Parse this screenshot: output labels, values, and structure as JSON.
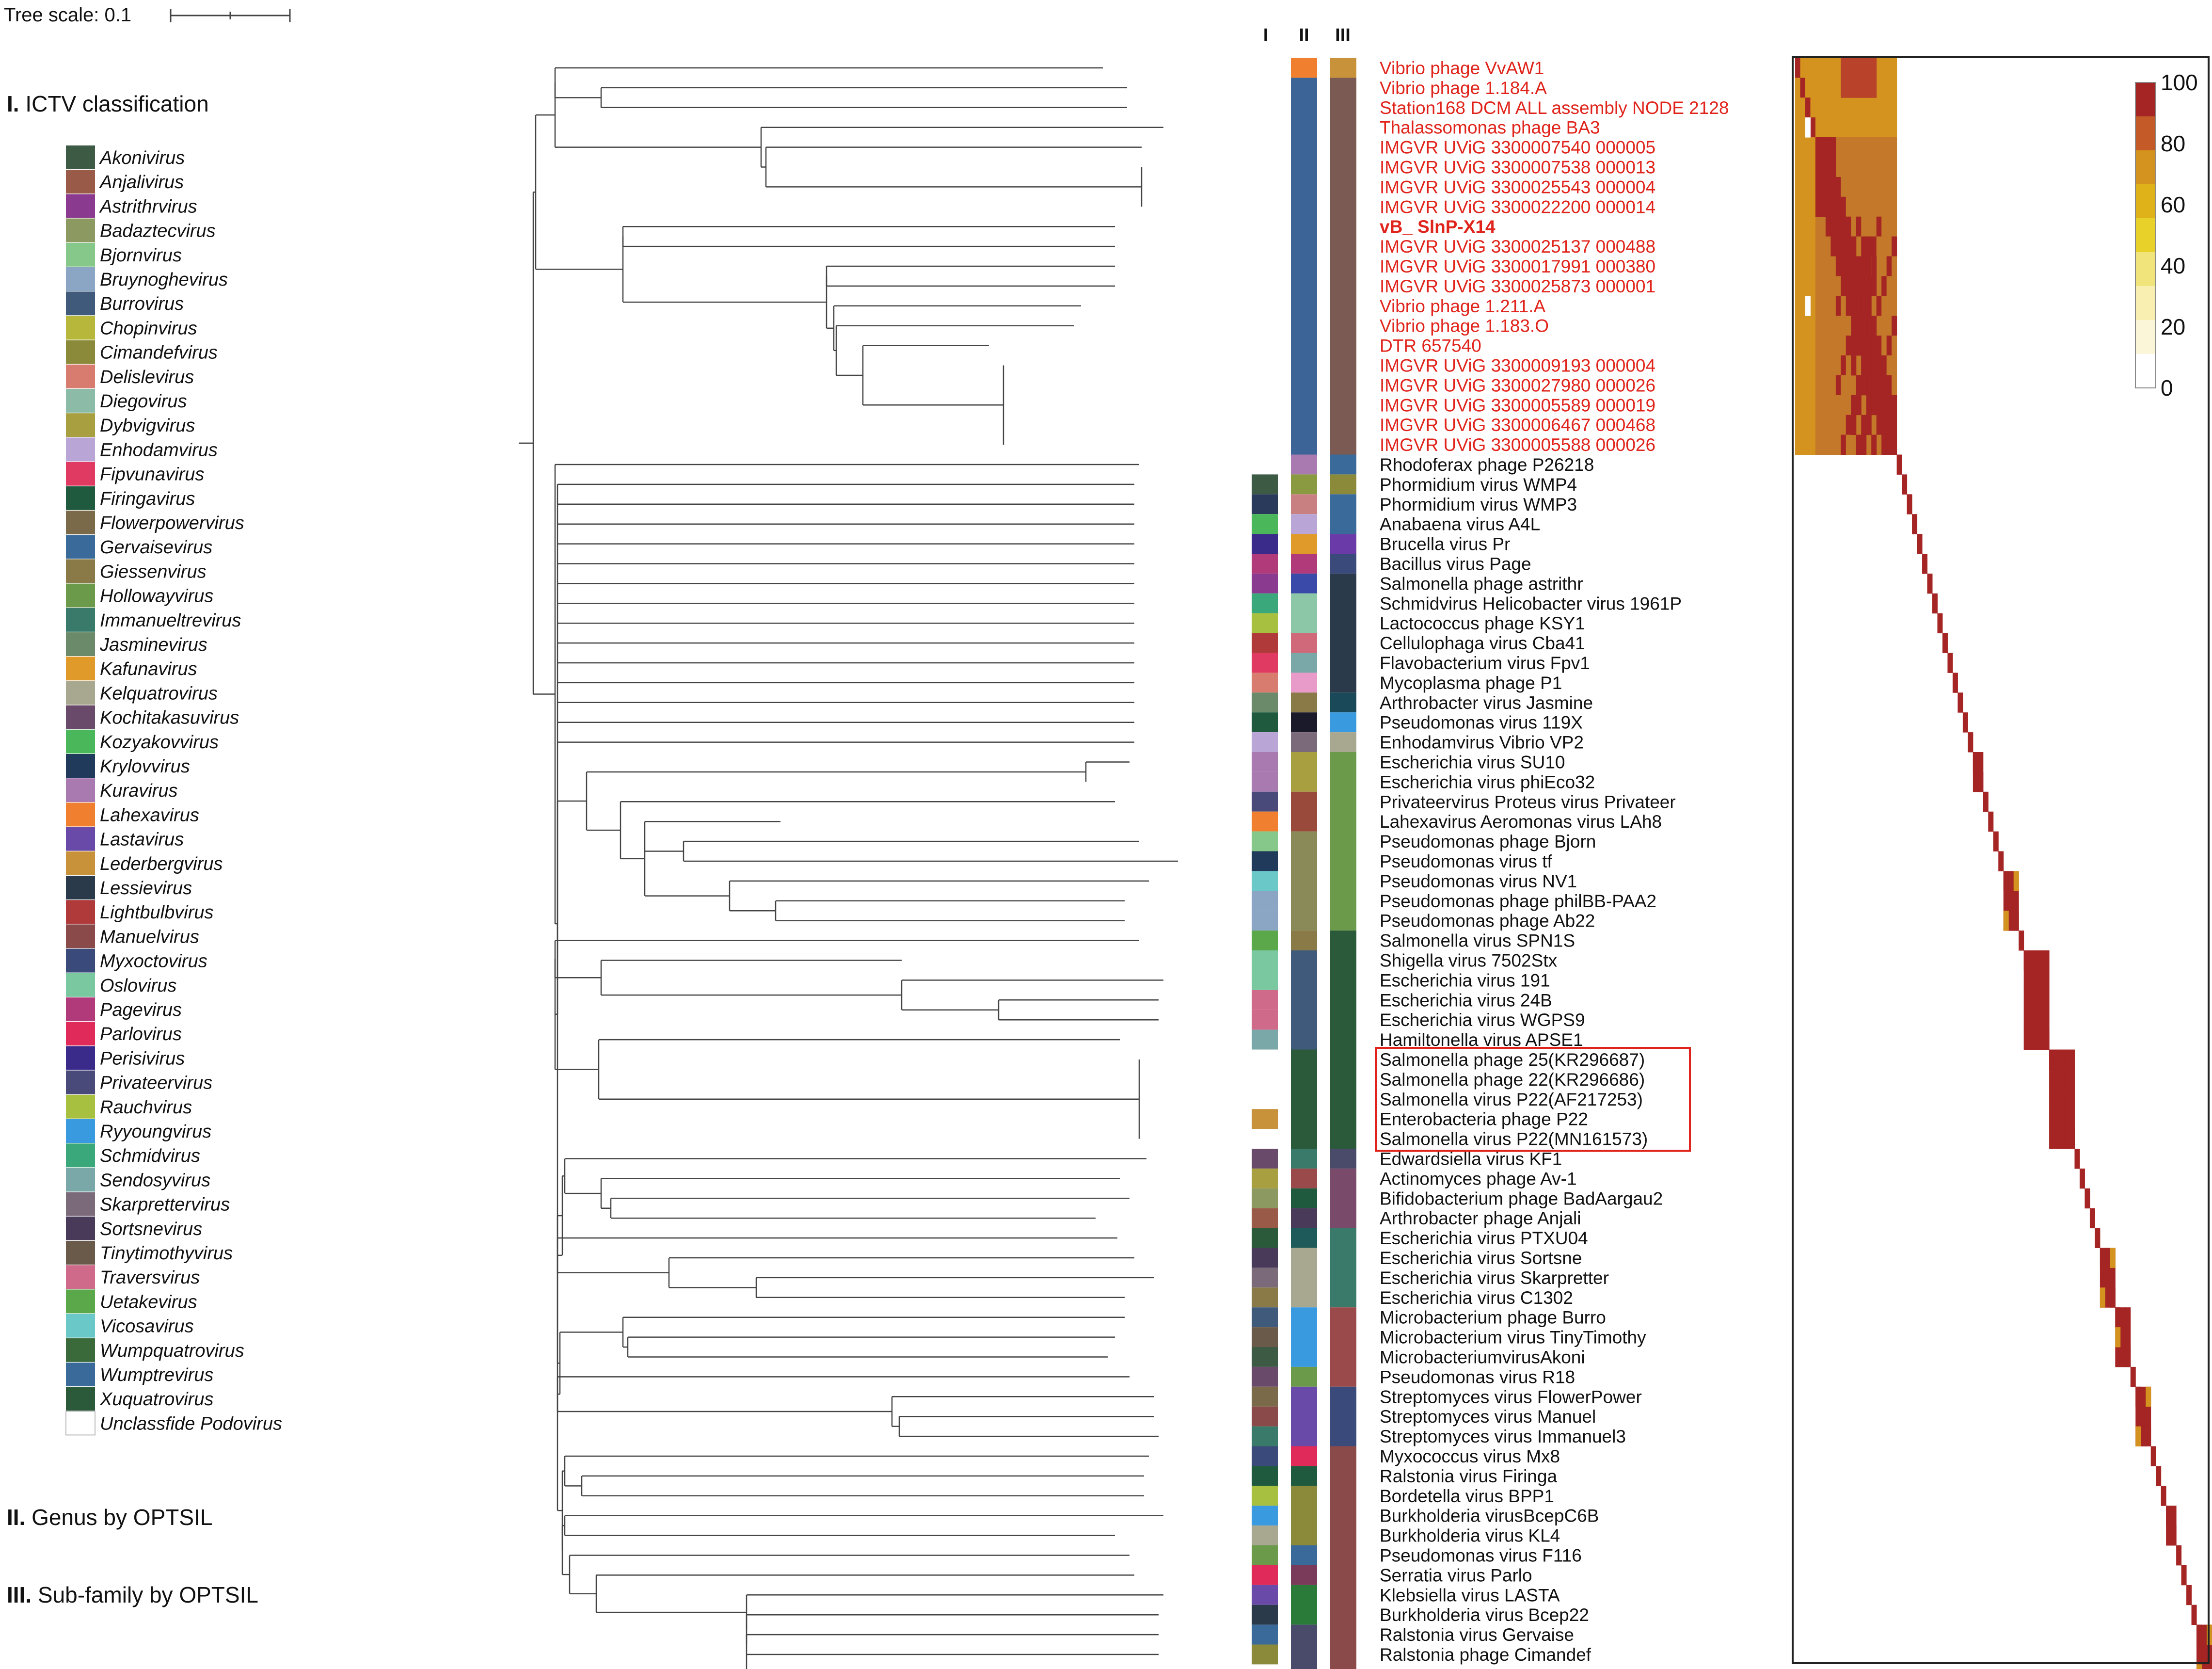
{
  "scale_bar": {
    "label": "Tree scale: 0.1"
  },
  "sections": {
    "ictv": {
      "numeral": "I.",
      "text": " ICTV classification"
    },
    "genus": {
      "numeral": "II.",
      "text": " Genus by OPTSIL"
    },
    "subfamily": {
      "numeral": "III.",
      "text": " Sub-family by OPTSIL"
    }
  },
  "column_headers": [
    "I",
    "II",
    "III"
  ],
  "legend": [
    {
      "name": "Akonivirus",
      "color": "#3d5a45"
    },
    {
      "name": "Anjalivirus",
      "color": "#9a5a48"
    },
    {
      "name": "Astrithrvirus",
      "color": "#8a3a8f"
    },
    {
      "name": "Badaztecvirus",
      "color": "#8c9a62"
    },
    {
      "name": "Bjornvirus",
      "color": "#86c88a"
    },
    {
      "name": "Bruynoghevirus",
      "color": "#8aa6c4"
    },
    {
      "name": "Burrovirus",
      "color": "#3f5a7a"
    },
    {
      "name": "Chopinvirus",
      "color": "#b7b83b"
    },
    {
      "name": "Cimandefvirus",
      "color": "#8b8a3a"
    },
    {
      "name": "Delislevirus",
      "color": "#d97c70"
    },
    {
      "name": "Diegovirus",
      "color": "#8cbca8"
    },
    {
      "name": "Dybvigvirus",
      "color": "#a8a040"
    },
    {
      "name": "Enhodamvirus",
      "color": "#b9a6d6"
    },
    {
      "name": "Fipvunavirus",
      "color": "#e03a62"
    },
    {
      "name": "Firingavirus",
      "color": "#1f5a3f"
    },
    {
      "name": "Flowerpowervirus",
      "color": "#7a6a4a"
    },
    {
      "name": "Gervaisevirus",
      "color": "#3a6a9a"
    },
    {
      "name": "Giessenvirus",
      "color": "#8a7a48"
    },
    {
      "name": "Hollowayvirus",
      "color": "#6a9a4a"
    },
    {
      "name": "Immanueltrevirus",
      "color": "#3a7a6a"
    },
    {
      "name": "Jasminevirus",
      "color": "#6a8a6a"
    },
    {
      "name": "Kafunavirus",
      "color": "#e09a2a"
    },
    {
      "name": "Kelquatrovirus",
      "color": "#a8a890"
    },
    {
      "name": "Kochitakasuvirus",
      "color": "#6a4a6a"
    },
    {
      "name": "Kozyakovvirus",
      "color": "#4ab85a"
    },
    {
      "name": "Krylovvirus",
      "color": "#1f3a5a"
    },
    {
      "name": "Kuravirus",
      "color": "#a87ab0"
    },
    {
      "name": "Lahexavirus",
      "color": "#f08030"
    },
    {
      "name": "Lastavirus",
      "color": "#6a4aa8"
    },
    {
      "name": "Lederbergvirus",
      "color": "#c8923a"
    },
    {
      "name": "Lessievirus",
      "color": "#2a3a4a"
    },
    {
      "name": "Lightbulbvirus",
      "color": "#b03a3a"
    },
    {
      "name": "Manuelvirus",
      "color": "#8a4a4a"
    },
    {
      "name": "Myxoctovirus",
      "color": "#3a4a7a"
    },
    {
      "name": "Oslovirus",
      "color": "#7ac8a0"
    },
    {
      "name": "Pagevirus",
      "color": "#b03a7a"
    },
    {
      "name": "Parlovirus",
      "color": "#e02a5a"
    },
    {
      "name": "Perisivirus",
      "color": "#3a2a8a"
    },
    {
      "name": "Privateervirus",
      "color": "#4a4a7a"
    },
    {
      "name": "Rauchvirus",
      "color": "#a8c040"
    },
    {
      "name": "Ryyoungvirus",
      "color": "#3a9ae0"
    },
    {
      "name": "Schmidvirus",
      "color": "#3aa87a"
    },
    {
      "name": "Sendosyvirus",
      "color": "#7aa8a8"
    },
    {
      "name": "Skarprettervirus",
      "color": "#7a6a7a"
    },
    {
      "name": "Sortsnevirus",
      "color": "#4a3a5a"
    },
    {
      "name": "Tinytimothyvirus",
      "color": "#6a5a4a"
    },
    {
      "name": "Traversvirus",
      "color": "#d06a8a"
    },
    {
      "name": "Uetakevirus",
      "color": "#5aa84a"
    },
    {
      "name": "Vicosavirus",
      "color": "#6ac8c8"
    },
    {
      "name": "Wumpquatrovirus",
      "color": "#3a6a3a"
    },
    {
      "name": "Wumptrevirus",
      "color": "#3a6a9a"
    },
    {
      "name": "Xuquatrovirus",
      "color": "#2a5a3a"
    },
    {
      "name": "Unclassfide Podovirus",
      "color": "#ffffff"
    }
  ],
  "leaves": [
    {
      "label": "Vibrio phage VvAW1",
      "color": "red"
    },
    {
      "label": "Vibrio phage 1.184.A",
      "color": "red"
    },
    {
      "label": "Station168 DCM ALL assembly NODE 2128",
      "color": "red"
    },
    {
      "label": "Thalassomonas phage BA3",
      "color": "red"
    },
    {
      "label": "IMGVR UViG 3300007540 000005",
      "color": "red"
    },
    {
      "label": "IMGVR UViG 3300007538 000013",
      "color": "red"
    },
    {
      "label": "IMGVR UViG 3300025543 000004",
      "color": "red"
    },
    {
      "label": "IMGVR UViG 3300022200 000014",
      "color": "red"
    },
    {
      "label": "vB_ SlnP-X14",
      "color": "red",
      "bold": true
    },
    {
      "label": "IMGVR UViG 3300025137 000488",
      "color": "red"
    },
    {
      "label": "IMGVR UViG 3300017991 000380",
      "color": "red"
    },
    {
      "label": "IMGVR UViG 3300025873 000001",
      "color": "red"
    },
    {
      "label": "Vibrio phage 1.211.A",
      "color": "red"
    },
    {
      "label": "Vibrio phage 1.183.O",
      "color": "red"
    },
    {
      "label": "DTR 657540",
      "color": "red"
    },
    {
      "label": "IMGVR UViG 3300009193 000004",
      "color": "red"
    },
    {
      "label": "IMGVR UViG 3300027980 000026",
      "color": "red"
    },
    {
      "label": "IMGVR UViG 3300005589 000019",
      "color": "red"
    },
    {
      "label": "IMGVR UViG 3300006467 000468",
      "color": "red"
    },
    {
      "label": "IMGVR UViG 3300005588 000026",
      "color": "red"
    },
    {
      "label": "Rhodoferax phage P26218",
      "color": "black"
    },
    {
      "label": "Phormidium virus WMP4",
      "color": "black"
    },
    {
      "label": "Phormidium virus WMP3",
      "color": "black"
    },
    {
      "label": "Anabaena virus A4L",
      "color": "black"
    },
    {
      "label": "Brucella virus Pr",
      "color": "black"
    },
    {
      "label": "Bacillus virus Page",
      "color": "black"
    },
    {
      "label": "Salmonella phage astrithr",
      "color": "black"
    },
    {
      "label": "Schmidvirus Helicobacter virus 1961P",
      "color": "black"
    },
    {
      "label": "Lactococcus phage KSY1",
      "color": "black"
    },
    {
      "label": "Cellulophaga virus Cba41",
      "color": "black"
    },
    {
      "label": "Flavobacterium virus Fpv1",
      "color": "black"
    },
    {
      "label": "Mycoplasma phage P1",
      "color": "black"
    },
    {
      "label": "Arthrobacter virus Jasmine",
      "color": "black"
    },
    {
      "label": "Pseudomonas virus 119X",
      "color": "black"
    },
    {
      "label": "Enhodamvirus Vibrio VP2",
      "color": "black"
    },
    {
      "label": "Escherichia virus SU10",
      "color": "black"
    },
    {
      "label": "Escherichia virus phiEco32",
      "color": "black"
    },
    {
      "label": "Privateervirus Proteus virus Privateer",
      "color": "black"
    },
    {
      "label": "Lahexavirus Aeromonas virus LAh8",
      "color": "black"
    },
    {
      "label": "Pseudomonas phage Bjorn",
      "color": "black"
    },
    {
      "label": "Pseudomonas virus tf",
      "color": "black"
    },
    {
      "label": "Pseudomonas virus NV1",
      "color": "black"
    },
    {
      "label": "Pseudomonas phage philBB-PAA2",
      "color": "black"
    },
    {
      "label": "Pseudomonas phage Ab22",
      "color": "black"
    },
    {
      "label": "Salmonella virus SPN1S",
      "color": "black"
    },
    {
      "label": "Shigella virus 7502Stx",
      "color": "black"
    },
    {
      "label": "Escherichia virus 191",
      "color": "black"
    },
    {
      "label": "Escherichia virus 24B",
      "color": "black"
    },
    {
      "label": "Escherichia virus WGPS9",
      "color": "black"
    },
    {
      "label": "Hamiltonella virus APSE1",
      "color": "black"
    },
    {
      "label": "Salmonella phage 25(KR296687)",
      "color": "black"
    },
    {
      "label": "Salmonella phage 22(KR296686)",
      "color": "black"
    },
    {
      "label": "Salmonella virus P22(AF217253)",
      "color": "black"
    },
    {
      "label": "Enterobacteria phage P22",
      "color": "black"
    },
    {
      "label": "Salmonella virus P22(MN161573)",
      "color": "black"
    },
    {
      "label": "Edwardsiella virus KF1",
      "color": "black"
    },
    {
      "label": "Actinomyces phage Av-1",
      "color": "black"
    },
    {
      "label": "Bifidobacterium phage BadAargau2",
      "color": "black"
    },
    {
      "label": "Arthrobacter phage Anjali",
      "color": "black"
    },
    {
      "label": "Escherichia virus PTXU04",
      "color": "black"
    },
    {
      "label": "Escherichia virus Sortsne",
      "color": "black"
    },
    {
      "label": "Escherichia virus Skarpretter",
      "color": "black"
    },
    {
      "label": "Escherichia virus C1302",
      "color": "black"
    },
    {
      "label": "Microbacterium phage Burro",
      "color": "black"
    },
    {
      "label": "Microbacterium virus TinyTimothy",
      "color": "black"
    },
    {
      "label": "MicrobacteriumvirusAkoni",
      "color": "black"
    },
    {
      "label": "Pseudomonas virus R18",
      "color": "black"
    },
    {
      "label": "Streptomyces virus FlowerPower",
      "color": "black"
    },
    {
      "label": "Streptomyces virus Manuel",
      "color": "black"
    },
    {
      "label": "Streptomyces virus Immanuel3",
      "color": "black"
    },
    {
      "label": "Myxococcus virus Mx8",
      "color": "black"
    },
    {
      "label": "Ralstonia virus Firinga",
      "color": "black"
    },
    {
      "label": "Bordetella virus BPP1",
      "color": "black"
    },
    {
      "label": "Burkholderia virusBcepC6B",
      "color": "black"
    },
    {
      "label": "Burkholderia virus KL4",
      "color": "black"
    },
    {
      "label": "Pseudomonas virus F116",
      "color": "black"
    },
    {
      "label": "Serratia virus Parlo",
      "color": "black"
    },
    {
      "label": "Klebsiella virus LASTA",
      "color": "black"
    },
    {
      "label": "Burkholderia virus Bcep22",
      "color": "black"
    },
    {
      "label": "Ralstonia virus Gervaise",
      "color": "black"
    },
    {
      "label": "Ralstonia phage Cimandef",
      "color": "black"
    }
  ],
  "col1_colors": [
    null,
    null,
    null,
    null,
    null,
    null,
    null,
    null,
    null,
    null,
    null,
    null,
    null,
    null,
    null,
    null,
    null,
    null,
    null,
    null,
    null,
    "#3d5a45",
    "#2a3a5a",
    "#4ab85a",
    "#3a2a8a",
    "#b03a7a",
    "#8a3a8f",
    "#3aa87a",
    "#a8c040",
    "#b03a3a",
    "#e03a62",
    "#d97c70",
    "#6a8a6a",
    "#1f5a3f",
    "#b9a6d6",
    "#a87ab0",
    "#a87ab0",
    "#4a4a7a",
    "#f08030",
    "#86c88a",
    "#1f3a5a",
    "#6ac8c8",
    "#8aa6c4",
    "#8aa6c4",
    "#5aa84a",
    "#7ac8a0",
    "#7ac8a0",
    "#d06a8a",
    "#d06a8a",
    "#7aa8a8",
    null,
    null,
    null,
    "#c8923a",
    null,
    "#6a4a6a",
    "#a8a040",
    "#8c9a62",
    "#9a5a48",
    "#2a5a3a",
    "#4a3a5a",
    "#7a6a7a",
    "#8a7a48",
    "#3f5a7a",
    "#6a5a4a",
    "#3d5a45",
    "#6a4a6a",
    "#7a6a4a",
    "#8a4a4a",
    "#3a7a6a",
    "#3a4a7a",
    "#1f5a3f",
    "#a8c040",
    "#3a9ae0",
    "#a8a890",
    "#6a9a4a",
    "#e02a5a",
    "#6a4aa8",
    "#2a3a4a",
    "#3a6a9a",
    "#8b8a3a"
  ],
  "col2_segments": [
    {
      "from": 0,
      "to": 0,
      "color": "#f08030"
    },
    {
      "from": 1,
      "to": 19,
      "color": "#3d6496"
    },
    {
      "from": 20,
      "to": 20,
      "color": "#a87ab0"
    },
    {
      "from": 21,
      "to": 21,
      "color": "#8a9a40"
    },
    {
      "from": 22,
      "to": 22,
      "color": "#c88080"
    },
    {
      "from": 23,
      "to": 23,
      "color": "#b9a6d6"
    },
    {
      "from": 24,
      "to": 24,
      "color": "#e09a2a"
    },
    {
      "from": 25,
      "to": 25,
      "color": "#b03a7a"
    },
    {
      "from": 26,
      "to": 26,
      "color": "#3a4aa8"
    },
    {
      "from": 27,
      "to": 28,
      "color": "#8cc8a8"
    },
    {
      "from": 29,
      "to": 29,
      "color": "#d06a7a"
    },
    {
      "from": 30,
      "to": 30,
      "color": "#7aa8a8"
    },
    {
      "from": 31,
      "to": 31,
      "color": "#e89ac8"
    },
    {
      "from": 32,
      "to": 32,
      "color": "#8a7a48"
    },
    {
      "from": 33,
      "to": 33,
      "color": "#1a1a2a"
    },
    {
      "from": 34,
      "to": 34,
      "color": "#7a6a7a"
    },
    {
      "from": 35,
      "to": 36,
      "color": "#a8a040"
    },
    {
      "from": 37,
      "to": 38,
      "color": "#9a4a3a"
    },
    {
      "from": 39,
      "to": 43,
      "color": "#8a8a58"
    },
    {
      "from": 44,
      "to": 44,
      "color": "#8a7a48"
    },
    {
      "from": 45,
      "to": 49,
      "color": "#3f5a7a"
    },
    {
      "from": 50,
      "to": 54,
      "color": "#2a5a3a"
    },
    {
      "from": 55,
      "to": 55,
      "color": "#3a7a6a"
    },
    {
      "from": 56,
      "to": 56,
      "color": "#9a4a4a"
    },
    {
      "from": 57,
      "to": 57,
      "color": "#1f5a3f"
    },
    {
      "from": 58,
      "to": 58,
      "color": "#4a3a5a"
    },
    {
      "from": 59,
      "to": 59,
      "color": "#1f5a5a"
    },
    {
      "from": 60,
      "to": 62,
      "color": "#a8a890"
    },
    {
      "from": 63,
      "to": 65,
      "color": "#3a9ae0"
    },
    {
      "from": 66,
      "to": 66,
      "color": "#6a9a4a"
    },
    {
      "from": 67,
      "to": 69,
      "color": "#6a4aa8"
    },
    {
      "from": 70,
      "to": 70,
      "color": "#e02a5a"
    },
    {
      "from": 71,
      "to": 71,
      "color": "#1f5a3f"
    },
    {
      "from": 72,
      "to": 74,
      "color": "#8a8a3a"
    },
    {
      "from": 75,
      "to": 75,
      "color": "#3a6a9a"
    },
    {
      "from": 76,
      "to": 76,
      "color": "#7a3a5a"
    },
    {
      "from": 77,
      "to": 78,
      "color": "#2a7a3a"
    },
    {
      "from": 79,
      "to": 81,
      "color": "#4a4a6a"
    }
  ],
  "col3_segments": [
    {
      "from": 0,
      "to": 0,
      "color": "#c8923a"
    },
    {
      "from": 1,
      "to": 19,
      "color": "#7a5a52"
    },
    {
      "from": 20,
      "to": 20,
      "color": "#3a6a9a"
    },
    {
      "from": 21,
      "to": 21,
      "color": "#8a8a3a"
    },
    {
      "from": 22,
      "to": 23,
      "color": "#3a6a9a"
    },
    {
      "from": 24,
      "to": 24,
      "color": "#6a3aa8"
    },
    {
      "from": 25,
      "to": 25,
      "color": "#3a4a7a"
    },
    {
      "from": 26,
      "to": 31,
      "color": "#2a3a4a"
    },
    {
      "from": 32,
      "to": 32,
      "color": "#1a4a5a"
    },
    {
      "from": 33,
      "to": 33,
      "color": "#3a9ae0"
    },
    {
      "from": 34,
      "to": 34,
      "color": "#a8a890"
    },
    {
      "from": 35,
      "to": 43,
      "color": "#6a9a4a"
    },
    {
      "from": 44,
      "to": 54,
      "color": "#2a5a3a"
    },
    {
      "from": 55,
      "to": 55,
      "color": "#4a4a6a"
    },
    {
      "from": 56,
      "to": 58,
      "color": "#7a4a6a"
    },
    {
      "from": 59,
      "to": 62,
      "color": "#3a7a6a"
    },
    {
      "from": 63,
      "to": 66,
      "color": "#9a4a4a"
    },
    {
      "from": 67,
      "to": 69,
      "color": "#3a4a7a"
    },
    {
      "from": 70,
      "to": 81,
      "color": "#8a4a4a"
    }
  ],
  "heatmap": {
    "color_scale": {
      "ticks": [
        "100",
        "80",
        "60",
        "40",
        "20",
        "0"
      ],
      "colors": [
        "#a42523",
        "#c45a28",
        "#d4921e",
        "#e0b21a",
        "#e8d22a",
        "#f0e47a",
        "#f8efb0",
        "#fbf6d8",
        "#ffffff"
      ]
    },
    "diag_color": "#a42523"
  },
  "highlight_box": {
    "from": 50,
    "to": 54
  }
}
